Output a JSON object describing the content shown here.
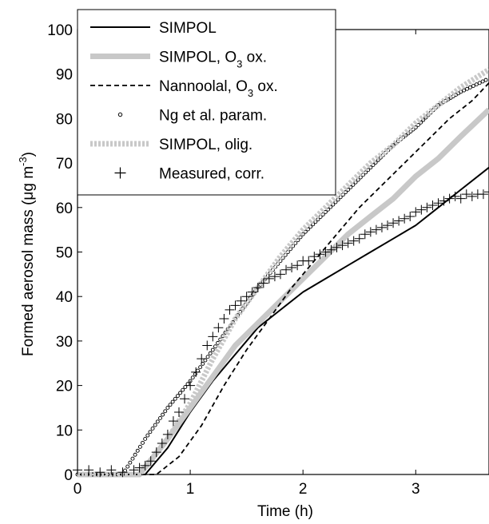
{
  "chart_data": {
    "type": "line",
    "xlabel": "Time (h)",
    "ylabel": {
      "main": "Formed aerosol mass (",
      "mu": "μ",
      "unit": "g m",
      "sup": "-3",
      "close": ")"
    },
    "xlim": [
      0,
      3.65
    ],
    "ylim": [
      0,
      100
    ],
    "x_ticks": [
      "0",
      "1",
      "2",
      "3"
    ],
    "y_ticks": [
      "0",
      "10",
      "20",
      "30",
      "40",
      "50",
      "60",
      "70",
      "80",
      "90",
      "100"
    ],
    "grid": false,
    "legend_position": "top-left",
    "series": [
      {
        "name": "SIMPOL",
        "style": "solid-thin",
        "color": "#000000",
        "x": [
          0,
          0.6,
          0.8,
          1.0,
          1.2,
          1.4,
          1.6,
          1.8,
          2.0,
          2.2,
          2.4,
          2.6,
          2.8,
          3.0,
          3.2,
          3.4,
          3.65
        ],
        "y": [
          0,
          0,
          6,
          14,
          21,
          27,
          33,
          37,
          41,
          44,
          47,
          50,
          53,
          56,
          60,
          64,
          69
        ]
      },
      {
        "name": "SIMPOL, O",
        "name_sub": "3",
        "name_suffix": " ox.",
        "style": "solid-thick",
        "color": "#c8c8c8",
        "x": [
          0,
          0.55,
          0.8,
          1.0,
          1.2,
          1.4,
          1.6,
          1.8,
          2.0,
          2.2,
          2.4,
          2.6,
          2.8,
          3.0,
          3.2,
          3.4,
          3.65
        ],
        "y": [
          0,
          0,
          8,
          15,
          22,
          29,
          34,
          39,
          44,
          49,
          54,
          58,
          62,
          67,
          71,
          76,
          82
        ]
      },
      {
        "name": "Nannoolal, O",
        "name_sub": "3",
        "name_suffix": " ox.",
        "style": "dashed",
        "color": "#000000",
        "x": [
          0,
          0.7,
          0.9,
          1.1,
          1.3,
          1.5,
          1.7,
          1.9,
          2.1,
          2.3,
          2.5,
          2.7,
          2.9,
          3.1,
          3.3,
          3.5,
          3.65
        ],
        "y": [
          0,
          0,
          4,
          11,
          20,
          28,
          35,
          42,
          48,
          54,
          60,
          65,
          70,
          75,
          80,
          84,
          88
        ]
      },
      {
        "name": "Ng et al. param.",
        "style": "circles",
        "color": "#000000",
        "x": [
          0,
          0.4,
          0.6,
          0.8,
          1.0,
          1.2,
          1.4,
          1.6,
          1.8,
          2.0,
          2.2,
          2.4,
          2.6,
          2.8,
          3.0,
          3.2,
          3.4,
          3.65
        ],
        "y": [
          0,
          0,
          8,
          15,
          21,
          28,
          35,
          42,
          48,
          54,
          59,
          64,
          69,
          74,
          78,
          83,
          86,
          89
        ]
      },
      {
        "name": "SIMPOL, olig.",
        "style": "dotted-thick",
        "color": "#c8c8c8",
        "x": [
          0,
          0.55,
          0.8,
          1.0,
          1.2,
          1.4,
          1.6,
          1.8,
          2.0,
          2.2,
          2.4,
          2.6,
          2.8,
          3.0,
          3.2,
          3.4,
          3.65
        ],
        "y": [
          0,
          0,
          8,
          16,
          26,
          35,
          42,
          49,
          55,
          60,
          65,
          70,
          74,
          79,
          83,
          87,
          91
        ]
      },
      {
        "name": "Measured, corr.",
        "style": "plus",
        "color": "#000000",
        "x": [
          0,
          0.1,
          0.2,
          0.3,
          0.4,
          0.5,
          0.55,
          0.6,
          0.65,
          0.7,
          0.75,
          0.8,
          0.85,
          0.9,
          0.95,
          1.0,
          1.05,
          1.1,
          1.15,
          1.2,
          1.25,
          1.3,
          1.35,
          1.4,
          1.45,
          1.5,
          1.55,
          1.6,
          1.65,
          1.7,
          1.75,
          1.8,
          1.85,
          1.9,
          1.95,
          2.0,
          2.05,
          2.1,
          2.15,
          2.2,
          2.25,
          2.3,
          2.35,
          2.4,
          2.45,
          2.5,
          2.55,
          2.6,
          2.65,
          2.7,
          2.75,
          2.8,
          2.85,
          2.9,
          2.95,
          3.0,
          3.05,
          3.1,
          3.15,
          3.2,
          3.25,
          3.3,
          3.35,
          3.4,
          3.45,
          3.5,
          3.55,
          3.6,
          3.65
        ],
        "y": [
          1,
          1,
          0.5,
          1,
          0.5,
          1,
          1.5,
          2,
          3,
          5,
          7,
          9,
          12,
          14,
          17,
          20,
          23,
          26,
          29,
          31,
          33,
          35,
          37,
          38,
          39,
          40,
          41,
          42,
          43,
          44,
          44.5,
          45,
          46,
          46.5,
          47,
          48,
          48,
          49,
          49.5,
          50,
          50.5,
          51,
          51.5,
          52,
          52.5,
          53,
          54,
          54.5,
          55,
          55.5,
          56,
          56.5,
          57,
          57.5,
          58,
          59,
          59.5,
          60,
          60.5,
          61,
          61.5,
          62,
          62.5,
          62,
          63,
          62.5,
          63,
          63,
          63.5
        ]
      }
    ]
  }
}
